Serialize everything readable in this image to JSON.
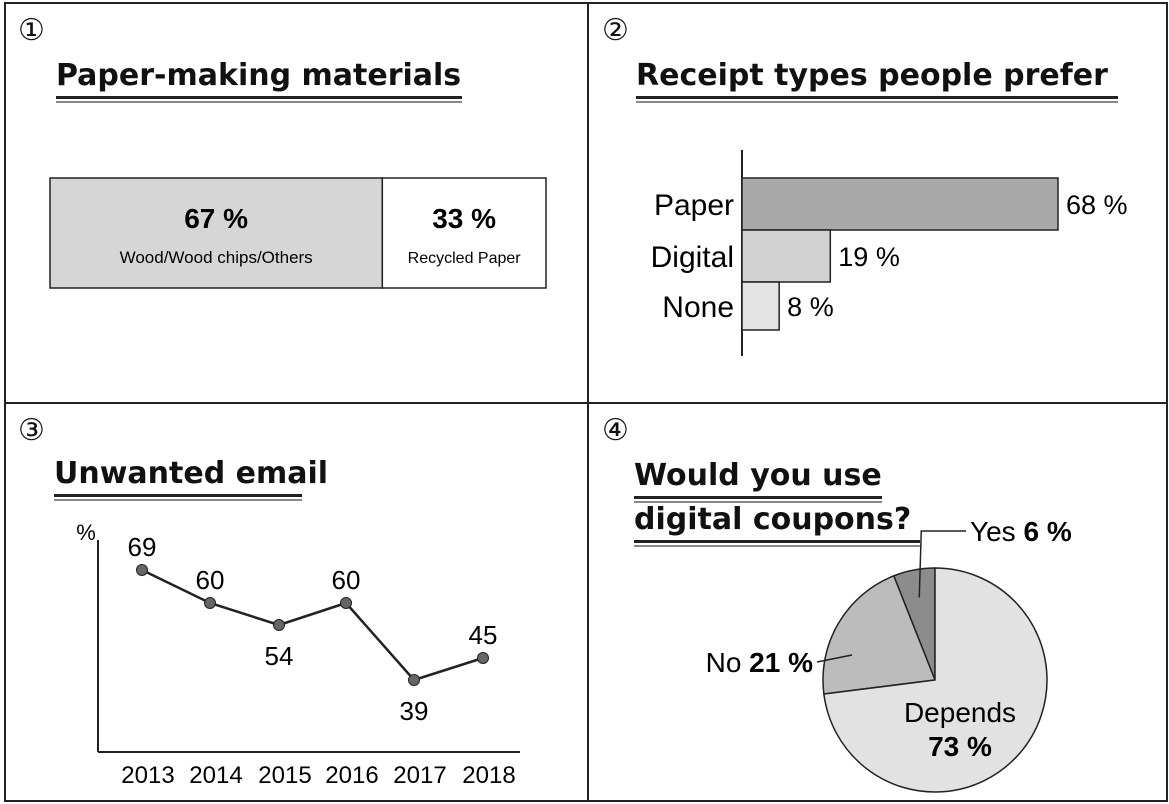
{
  "panels": [
    {
      "number": "①",
      "title": "Paper-making materials"
    },
    {
      "number": "②",
      "title": "Receipt types people prefer"
    },
    {
      "number": "③",
      "title": "Unwanted email"
    },
    {
      "number": "④",
      "title_lines": [
        "Would you use",
        "digital coupons?"
      ]
    }
  ],
  "chart_data": [
    {
      "type": "bar",
      "orientation": "stacked-horizontal",
      "title": "Paper-making materials",
      "categories": [
        "Wood/Wood chips/Others",
        "Recycled Paper"
      ],
      "values": [
        67,
        33
      ],
      "value_labels": [
        "67 %",
        "33 %"
      ],
      "colors": [
        "#d6d6d6",
        "#ffffff"
      ]
    },
    {
      "type": "bar",
      "orientation": "horizontal",
      "title": "Receipt types people prefer",
      "categories": [
        "Paper",
        "Digital",
        "None"
      ],
      "values": [
        68,
        19,
        8
      ],
      "value_labels": [
        "68 %",
        "19 %",
        "8 %"
      ],
      "colors": [
        "#a9a9a9",
        "#d2d2d2",
        "#e4e4e4"
      ],
      "xlim": [
        0,
        68
      ]
    },
    {
      "type": "line",
      "title": "Unwanted email",
      "ylabel": "%",
      "x": [
        "2013",
        "2014",
        "2015",
        "2016",
        "2017",
        "2018"
      ],
      "values": [
        69,
        60,
        54,
        60,
        39,
        45
      ],
      "value_labels": [
        "69",
        "60",
        "54",
        "60",
        "39",
        "45"
      ]
    },
    {
      "type": "pie",
      "title": "Would you use digital coupons?",
      "slices": [
        {
          "label": "Yes",
          "value": 6,
          "value_label": "6 %",
          "color": "#8c8c8c"
        },
        {
          "label": "No",
          "value": 21,
          "value_label": "21 %",
          "color": "#bcbcbc"
        },
        {
          "label": "Depends",
          "value": 73,
          "value_label": "73 %",
          "color": "#e2e2e2"
        }
      ]
    }
  ]
}
